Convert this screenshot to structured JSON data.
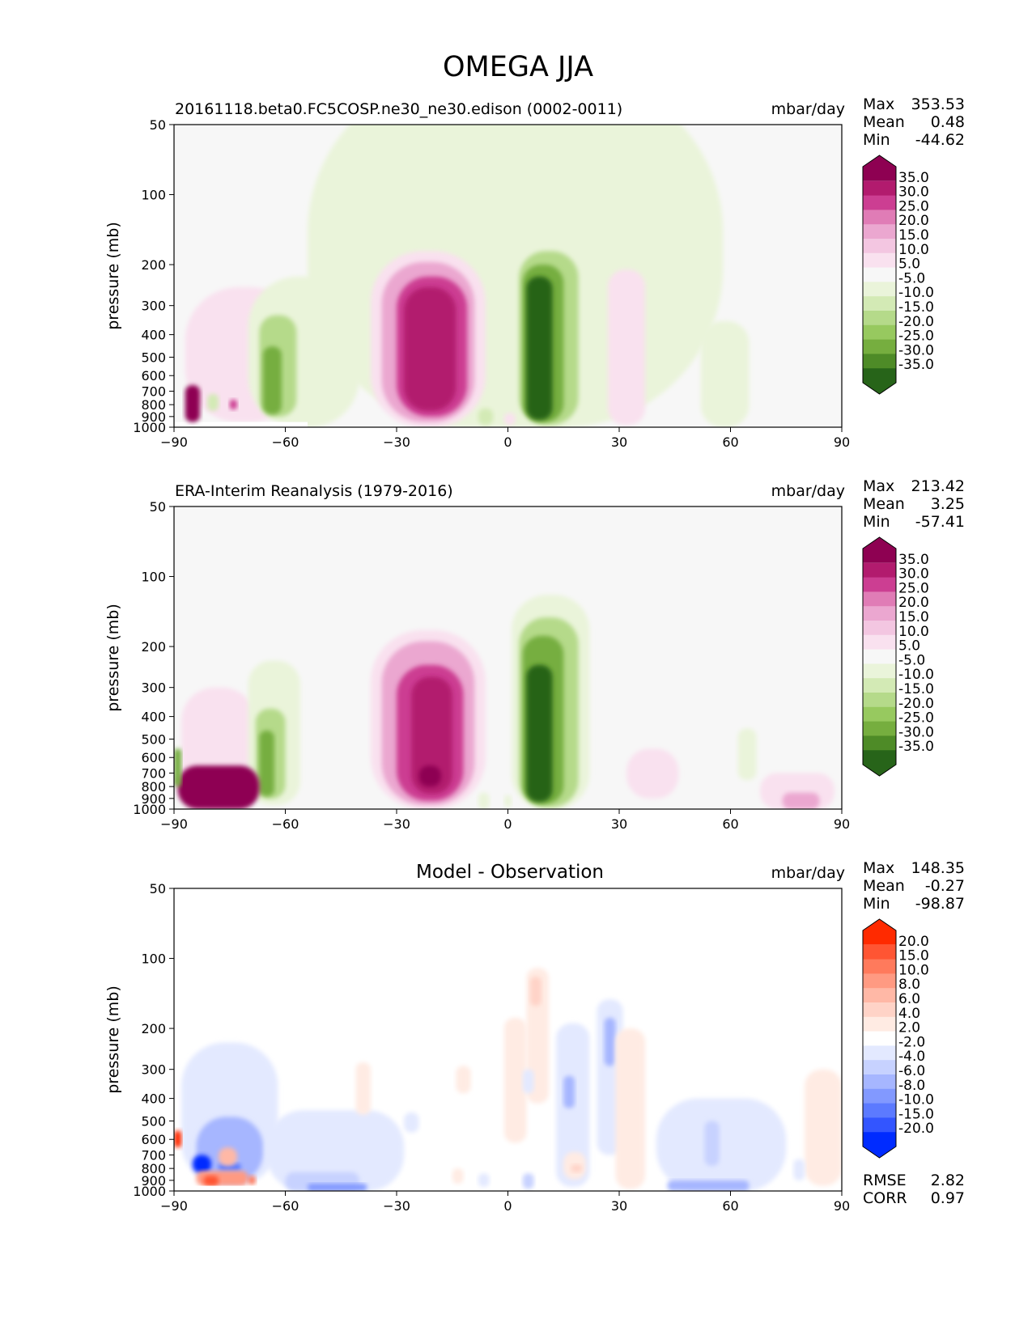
{
  "figure": {
    "title": "OMEGA JJA"
  },
  "chart_data": [
    {
      "type": "heatmap",
      "panel_title": "20161118.beta0.FC5COSP.ne30_ne30.edison (0002-0011)",
      "units": "mbar/day",
      "ylabel": "pressure (mb)",
      "xlim": [
        -90,
        90
      ],
      "ylim": [
        1000,
        50
      ],
      "yscale": "log",
      "x_ticks": [
        "−90",
        "−60",
        "−30",
        "0",
        "30",
        "60",
        "90"
      ],
      "y_ticks": [
        "50",
        "100",
        "200",
        "300",
        "400",
        "500",
        "600",
        "700",
        "800",
        "900",
        "1000"
      ],
      "stats": {
        "max_label": "Max",
        "max": "353.53",
        "mean_label": "Mean",
        "mean": "0.48",
        "min_label": "Min",
        "min": "-44.62"
      },
      "colorbar": {
        "labels": [
          "35.0",
          "30.0",
          "25.0",
          "20.0",
          "15.0",
          "10.0",
          "5.0",
          "-5.0",
          "-10.0",
          "-15.0",
          "-20.0",
          "-25.0",
          "-30.0",
          "-35.0"
        ],
        "colors": [
          "#8e0152",
          "#b21b6e",
          "#cc3e92",
          "#e07cb6",
          "#eba7d0",
          "#f3c6e1",
          "#f9e1ef",
          "#f7f7f7",
          "#eaf4da",
          "#d3eab5",
          "#b5da8a",
          "#97c95f",
          "#76ae3f",
          "#4e8b27",
          "#276419"
        ]
      },
      "features": [
        {
          "x0": -54,
          "x1": 58,
          "y0": 30,
          "y1": 1000,
          "level": -1
        },
        {
          "x0": -87,
          "x1": -55,
          "y0": 250,
          "y1": 950,
          "level": 1
        },
        {
          "x0": -70,
          "x1": -40,
          "y0": 225,
          "y1": 1000,
          "level": -1
        },
        {
          "x0": -67,
          "x1": -57,
          "y0": 330,
          "y1": 900,
          "level": -3
        },
        {
          "x0": -66,
          "x1": -61,
          "y0": 450,
          "y1": 880,
          "level": -5
        },
        {
          "x0": -37,
          "x1": -6,
          "y0": 175,
          "y1": 1000,
          "level": 1
        },
        {
          "x0": -34,
          "x1": -9,
          "y0": 195,
          "y1": 950,
          "level": 3
        },
        {
          "x0": -30,
          "x1": -11,
          "y0": 225,
          "y1": 900,
          "level": 5
        },
        {
          "x0": -28,
          "x1": -14,
          "y0": 250,
          "y1": 850,
          "level": 6
        },
        {
          "x0": 1,
          "x1": 22,
          "y0": 150,
          "y1": 1000,
          "level": -1
        },
        {
          "x0": 3,
          "x1": 19,
          "y0": 175,
          "y1": 975,
          "level": -3
        },
        {
          "x0": 4,
          "x1": 15,
          "y0": 200,
          "y1": 950,
          "level": -5
        },
        {
          "x0": 5,
          "x1": 12,
          "y0": 225,
          "y1": 930,
          "level": -7
        },
        {
          "x0": 27,
          "x1": 37,
          "y0": 210,
          "y1": 980,
          "level": 1
        },
        {
          "x0": 52,
          "x1": 65,
          "y0": 350,
          "y1": 1000,
          "level": -1
        },
        {
          "x0": -8,
          "x1": -4,
          "y0": 830,
          "y1": 980,
          "level": -2
        },
        {
          "x0": -1,
          "x1": 2,
          "y0": 870,
          "y1": 980,
          "level": 1
        },
        {
          "x0": -90,
          "x1": -54,
          "y0": 950,
          "y1": 1000,
          "level": "white"
        },
        {
          "x0": -87,
          "x1": -83,
          "y0": 660,
          "y1": 950,
          "level": 7
        },
        {
          "x0": -81,
          "x1": -78,
          "y0": 720,
          "y1": 850,
          "level": -2
        },
        {
          "x0": -75,
          "x1": -73,
          "y0": 760,
          "y1": 840,
          "level": 5
        }
      ]
    },
    {
      "type": "heatmap",
      "panel_title": "ERA-Interim Reanalysis (1979-2016)",
      "units": "mbar/day",
      "ylabel": "pressure (mb)",
      "xlim": [
        -90,
        90
      ],
      "ylim": [
        1000,
        50
      ],
      "yscale": "log",
      "x_ticks": [
        "−90",
        "−60",
        "−30",
        "0",
        "30",
        "60",
        "90"
      ],
      "y_ticks": [
        "50",
        "100",
        "200",
        "300",
        "400",
        "500",
        "600",
        "700",
        "800",
        "900",
        "1000"
      ],
      "stats": {
        "max_label": "Max",
        "max": "213.42",
        "mean_label": "Mean",
        "mean": "3.25",
        "min_label": "Min",
        "min": "-57.41"
      },
      "colorbar": {
        "labels": [
          "35.0",
          "30.0",
          "25.0",
          "20.0",
          "15.0",
          "10.0",
          "5.0",
          "-5.0",
          "-10.0",
          "-15.0",
          "-20.0",
          "-25.0",
          "-30.0",
          "-35.0"
        ],
        "colors": [
          "#8e0152",
          "#b21b6e",
          "#cc3e92",
          "#e07cb6",
          "#eba7d0",
          "#f3c6e1",
          "#f9e1ef",
          "#f7f7f7",
          "#eaf4da",
          "#d3eab5",
          "#b5da8a",
          "#97c95f",
          "#76ae3f",
          "#4e8b27",
          "#276419"
        ]
      },
      "features": [
        {
          "x0": -88,
          "x1": -68,
          "y0": 300,
          "y1": 1000,
          "level": 1
        },
        {
          "x0": -70,
          "x1": -56,
          "y0": 230,
          "y1": 960,
          "level": -1
        },
        {
          "x0": -68,
          "x1": -60,
          "y0": 370,
          "y1": 900,
          "level": -3
        },
        {
          "x0": -67,
          "x1": -63,
          "y0": 460,
          "y1": 880,
          "level": -5
        },
        {
          "x0": -89,
          "x1": -67,
          "y0": 650,
          "y1": 1000,
          "level": 7
        },
        {
          "x0": -90,
          "x1": -88,
          "y0": 550,
          "y1": 800,
          "level": -5
        },
        {
          "x0": -37,
          "x1": -6,
          "y0": 170,
          "y1": 1000,
          "level": 1
        },
        {
          "x0": -34,
          "x1": -9,
          "y0": 190,
          "y1": 960,
          "level": 3
        },
        {
          "x0": -30,
          "x1": -12,
          "y0": 240,
          "y1": 920,
          "level": 5
        },
        {
          "x0": -26,
          "x1": -15,
          "y0": 270,
          "y1": 860,
          "level": 6
        },
        {
          "x0": -24,
          "x1": -18,
          "y0": 650,
          "y1": 800,
          "level": 8
        },
        {
          "x0": 1,
          "x1": 22,
          "y0": 120,
          "y1": 1000,
          "level": -1
        },
        {
          "x0": 3,
          "x1": 19,
          "y0": 150,
          "y1": 980,
          "level": -3
        },
        {
          "x0": 4,
          "x1": 15,
          "y0": 180,
          "y1": 950,
          "level": -5
        },
        {
          "x0": 5,
          "x1": 12,
          "y0": 240,
          "y1": 930,
          "level": -7
        },
        {
          "x0": 32,
          "x1": 46,
          "y0": 550,
          "y1": 900,
          "level": 1
        },
        {
          "x0": 62,
          "x1": 67,
          "y0": 450,
          "y1": 750,
          "level": -1
        },
        {
          "x0": 68,
          "x1": 88,
          "y0": 700,
          "y1": 1000,
          "level": 1
        },
        {
          "x0": 74,
          "x1": 84,
          "y0": 850,
          "y1": 1000,
          "level": 3
        },
        {
          "x0": -8,
          "x1": -5,
          "y0": 850,
          "y1": 1000,
          "level": -1
        },
        {
          "x0": -1,
          "x1": 1,
          "y0": 870,
          "y1": 980,
          "level": -1
        }
      ]
    },
    {
      "type": "heatmap",
      "panel_title": "Model - Observation",
      "units": "mbar/day",
      "ylabel": "pressure (mb)",
      "xlim": [
        -90,
        90
      ],
      "ylim": [
        1000,
        50
      ],
      "yscale": "log",
      "x_ticks": [
        "−90",
        "−60",
        "−30",
        "0",
        "30",
        "60",
        "90"
      ],
      "y_ticks": [
        "50",
        "100",
        "200",
        "300",
        "400",
        "500",
        "600",
        "700",
        "800",
        "900",
        "1000"
      ],
      "stats": {
        "max_label": "Max",
        "max": "148.35",
        "mean_label": "Mean",
        "mean": "-0.27",
        "min_label": "Min",
        "min": "-98.87"
      },
      "metrics": {
        "rmse_label": "RMSE",
        "rmse": "2.82",
        "corr_label": "CORR",
        "corr": "0.97"
      },
      "colorbar": {
        "labels": [
          "20.0",
          "15.0",
          "10.0",
          "8.0",
          "6.0",
          "4.0",
          "2.0",
          "-2.0",
          "-4.0",
          "-6.0",
          "-8.0",
          "-10.0",
          "-15.0",
          "-20.0"
        ],
        "colors": [
          "#ff2a00",
          "#ff5533",
          "#ff7a5c",
          "#ff9a82",
          "#ffb8a6",
          "#ffd3c7",
          "#ffebe3",
          "#ffffff",
          "#e3e9ff",
          "#c7d2ff",
          "#a6b6ff",
          "#8299ff",
          "#5c7aff",
          "#3355ff",
          "#002bff"
        ]
      },
      "features": [
        {
          "x0": -88,
          "x1": -62,
          "y0": 230,
          "y1": 950,
          "level": -1
        },
        {
          "x0": -84,
          "x1": -66,
          "y0": 480,
          "y1": 920,
          "level": -3
        },
        {
          "x0": -85,
          "x1": -80,
          "y0": 700,
          "y1": 840,
          "level": -7
        },
        {
          "x0": -78,
          "x1": -72,
          "y0": 760,
          "y1": 820,
          "level": -5
        },
        {
          "x0": -84,
          "x1": -70,
          "y0": 820,
          "y1": 950,
          "level": 4
        },
        {
          "x0": -82,
          "x1": -78,
          "y0": 860,
          "y1": 950,
          "level": 6
        },
        {
          "x0": -78,
          "x1": -73,
          "y0": 650,
          "y1": 780,
          "level": 3
        },
        {
          "x0": -70,
          "x1": -68,
          "y0": 860,
          "y1": 940,
          "level": 5
        },
        {
          "x0": -90,
          "x1": -88,
          "y0": 550,
          "y1": 650,
          "level": 7
        },
        {
          "x0": -90,
          "x1": -55,
          "y0": 950,
          "y1": 1000,
          "level": "white"
        },
        {
          "x0": -65,
          "x1": -28,
          "y0": 450,
          "y1": 1000,
          "level": -1
        },
        {
          "x0": -60,
          "x1": -40,
          "y0": 830,
          "y1": 1000,
          "level": -2
        },
        {
          "x0": -54,
          "x1": -38,
          "y0": 930,
          "y1": 1000,
          "level": -4
        },
        {
          "x0": -41,
          "x1": -37,
          "y0": 280,
          "y1": 470,
          "level": 1
        },
        {
          "x0": -14,
          "x1": -10,
          "y0": 290,
          "y1": 380,
          "level": 1
        },
        {
          "x0": -28,
          "x1": -24,
          "y0": 460,
          "y1": 560,
          "level": -1
        },
        {
          "x0": -1,
          "x1": 5,
          "y0": 180,
          "y1": 620,
          "level": 1
        },
        {
          "x0": 5,
          "x1": 11,
          "y0": 110,
          "y1": 420,
          "level": 1
        },
        {
          "x0": 6,
          "x1": 9,
          "y0": 120,
          "y1": 160,
          "level": 2
        },
        {
          "x0": 4,
          "x1": 7,
          "y0": 300,
          "y1": 380,
          "level": -1
        },
        {
          "x0": 13,
          "x1": 22,
          "y0": 190,
          "y1": 960,
          "level": -1
        },
        {
          "x0": 15,
          "x1": 18,
          "y0": 320,
          "y1": 440,
          "level": -3
        },
        {
          "x0": 24,
          "x1": 31,
          "y0": 150,
          "y1": 700,
          "level": -1
        },
        {
          "x0": 26,
          "x1": 29,
          "y0": 180,
          "y1": 290,
          "level": -3
        },
        {
          "x0": 29,
          "x1": 37,
          "y0": 200,
          "y1": 980,
          "level": 1
        },
        {
          "x0": 15,
          "x1": 21,
          "y0": 680,
          "y1": 890,
          "level": 1
        },
        {
          "x0": 17,
          "x1": 20,
          "y0": 770,
          "y1": 830,
          "level": 2
        },
        {
          "x0": -15,
          "x1": -12,
          "y0": 800,
          "y1": 930,
          "level": 1
        },
        {
          "x0": -8,
          "x1": -5,
          "y0": 840,
          "y1": 960,
          "level": -1
        },
        {
          "x0": 4,
          "x1": 7,
          "y0": 840,
          "y1": 980,
          "level": -2
        },
        {
          "x0": 40,
          "x1": 75,
          "y0": 400,
          "y1": 1000,
          "level": -1
        },
        {
          "x0": 43,
          "x1": 65,
          "y0": 900,
          "y1": 1000,
          "level": -3
        },
        {
          "x0": 53,
          "x1": 57,
          "y0": 500,
          "y1": 780,
          "level": -2
        },
        {
          "x0": 80,
          "x1": 90,
          "y0": 300,
          "y1": 950,
          "level": 1
        },
        {
          "x0": 77,
          "x1": 80,
          "y0": 730,
          "y1": 900,
          "level": -1
        }
      ]
    }
  ]
}
